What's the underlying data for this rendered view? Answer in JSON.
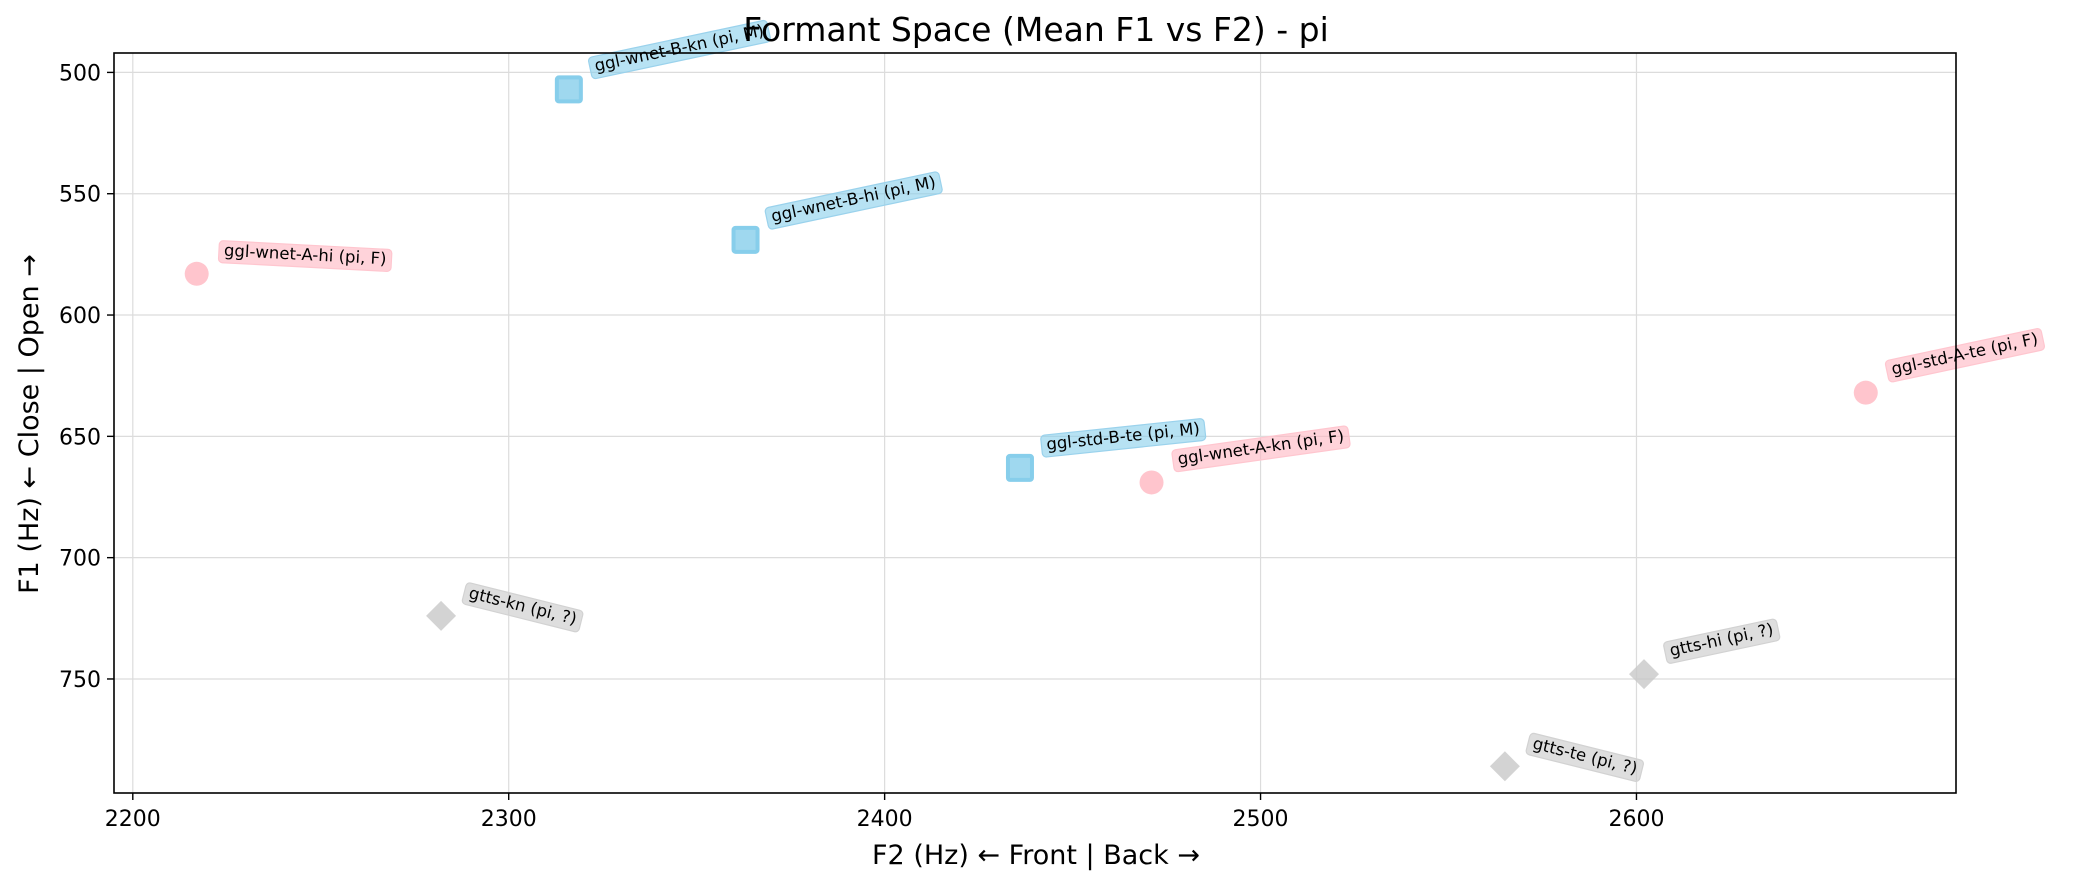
{
  "chart_data": {
    "type": "scatter",
    "title": "Formant Space (Mean F1 vs F2) - pi",
    "xlabel": "F2 (Hz) ← Front | Back →",
    "ylabel": "F1 (Hz) ← Close | Open →",
    "xlim": [
      2195,
      2685
    ],
    "ylim": [
      797,
      492
    ],
    "y_inverted": true,
    "grid": true,
    "x_ticks": [
      2200,
      2300,
      2400,
      2500,
      2600
    ],
    "y_ticks": [
      500,
      550,
      600,
      650,
      700,
      750
    ],
    "colors": {
      "M": "#87ceeb",
      "F": "#ffb6c1",
      "?": "#c8c8c8"
    },
    "markers": {
      "M": "square",
      "F": "circle",
      "?": "diamond"
    },
    "points": [
      {
        "label": "ggl-wnet-B-kn (pi, M)",
        "group": "M",
        "x": 2316,
        "y": 507,
        "label_angle": -12
      },
      {
        "label": "ggl-wnet-B-hi (pi, M)",
        "group": "M",
        "x": 2363,
        "y": 569,
        "label_angle": -12
      },
      {
        "label": "ggl-std-B-te (pi, M)",
        "group": "M",
        "x": 2436,
        "y": 663,
        "label_angle": -6
      },
      {
        "label": "ggl-wnet-A-hi (pi, F)",
        "group": "F",
        "x": 2217,
        "y": 583,
        "label_angle": 3
      },
      {
        "label": "ggl-wnet-A-kn (pi, F)",
        "group": "F",
        "x": 2471,
        "y": 669,
        "label_angle": -8
      },
      {
        "label": "ggl-std-A-te (pi, F)",
        "group": "F",
        "x": 2661,
        "y": 632,
        "label_angle": -12
      },
      {
        "label": "gtts-kn (pi, ?)",
        "group": "?",
        "x": 2282,
        "y": 724,
        "label_angle": 14
      },
      {
        "label": "gtts-te (pi, ?)",
        "group": "?",
        "x": 2565,
        "y": 786,
        "label_angle": 14
      },
      {
        "label": "gtts-hi (pi, ?)",
        "group": "?",
        "x": 2602,
        "y": 748,
        "label_angle": -12
      }
    ]
  }
}
